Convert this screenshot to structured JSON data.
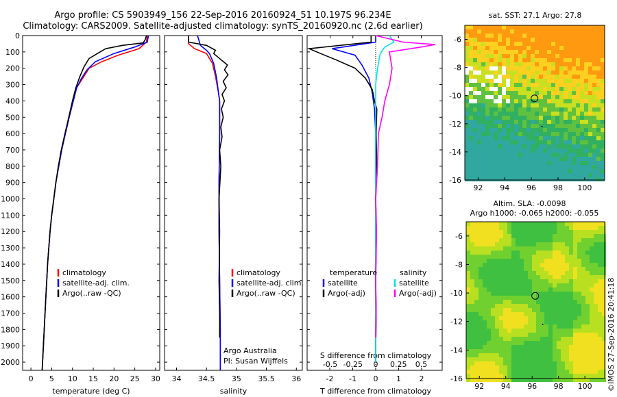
{
  "header": {
    "line1": "Argo profile: CS 5903949_156 22-Sep-2016 20160924_51 10.197S 96.234E",
    "line2": "Climatology: CARS2009. Satellite-adjusted climatology: synTS_20160920.nc (2.6d earlier)"
  },
  "colors": {
    "climatology": "#ff0000",
    "satellite": "#0000ff",
    "argo": "#000000",
    "sat_sal": "#00e5e5",
    "argo_sal": "#ff00ff"
  },
  "depth_axis": {
    "ticks": [
      0,
      100,
      200,
      300,
      400,
      500,
      600,
      700,
      800,
      900,
      1000,
      1100,
      1200,
      1300,
      1400,
      1500,
      1600,
      1700,
      1800,
      1900,
      2000
    ],
    "range": [
      0,
      2050
    ]
  },
  "temp_panel": {
    "xlabel": "temperature (deg C)",
    "xticks": [
      0,
      5,
      10,
      15,
      20,
      25,
      30
    ],
    "xlim": [
      -2,
      31
    ],
    "legend": [
      "climatology",
      "satellite-adj. clim.",
      "Argo(..raw -QC)"
    ]
  },
  "sal_panel": {
    "xlabel": "salinity",
    "xticks": [
      "34",
      "34.5",
      "35",
      "35.5",
      "36"
    ],
    "xlim": [
      33.8,
      36.1
    ],
    "legend": [
      "climatology",
      "satellite-adj. clim.",
      "Argo(..raw -QC)"
    ],
    "note1": "Argo Australia",
    "note2": "PI: Susan Wijffels"
  },
  "diff_panel": {
    "top_label": "S difference from climatology",
    "bottom_label": "T difference from climatology",
    "s_ticks": [
      "-0.5",
      "-0.25",
      "0",
      "0.25",
      "0.5"
    ],
    "t_ticks": [
      "-2",
      "-1",
      "0",
      "1",
      "2"
    ],
    "legend_t_title": "temperature",
    "legend_s_title": "salinity",
    "legend_t": [
      "satellite",
      "Argo(-adj)"
    ],
    "legend_s": [
      "satellite",
      "Argo(-adj)"
    ]
  },
  "map_top": {
    "title": "sat. SST: 27.1  Argo: 27.8"
  },
  "map_bottom": {
    "title1": "Altim. SLA: -0.0098",
    "title2": "Argo h1000: -0.065 h2000: -0.055"
  },
  "map_axes": {
    "yticks": [
      "-6",
      "-8",
      "-10",
      "-12",
      "-14",
      "-16"
    ],
    "xticks": [
      "92",
      "94",
      "96",
      "98",
      "100"
    ]
  },
  "credit": "©IMOS 27-Sep-2016 20:41:18",
  "chart_data": [
    {
      "type": "line",
      "xlabel": "temperature (deg C)",
      "ylabel": "",
      "ylim": [
        2050,
        0
      ],
      "xlim": [
        -2,
        31
      ],
      "series": [
        {
          "name": "climatology",
          "points": [
            [
              28,
              0
            ],
            [
              27.8,
              40
            ],
            [
              26,
              80
            ],
            [
              21,
              120
            ],
            [
              17,
              160
            ],
            [
              14,
              200
            ],
            [
              12.5,
              260
            ],
            [
              11,
              320
            ],
            [
              10.2,
              400
            ],
            [
              9.2,
              500
            ],
            [
              8.3,
              600
            ],
            [
              7.4,
              700
            ],
            [
              6.7,
              800
            ],
            [
              6,
              900
            ],
            [
              5.5,
              1000
            ],
            [
              5,
              1100
            ],
            [
              4.6,
              1200
            ],
            [
              4.3,
              1300
            ],
            [
              4,
              1400
            ],
            [
              3.8,
              1500
            ],
            [
              3.6,
              1600
            ],
            [
              3.4,
              1700
            ],
            [
              3.2,
              1800
            ],
            [
              3,
              1900
            ],
            [
              2.8,
              2000
            ],
            [
              2.7,
              2050
            ]
          ]
        },
        {
          "name": "satellite-adj. clim.",
          "points": [
            [
              28.3,
              0
            ],
            [
              28,
              40
            ],
            [
              25,
              70
            ],
            [
              20,
              110
            ],
            [
              15.5,
              160
            ],
            [
              13.5,
              210
            ],
            [
              12.2,
              260
            ],
            [
              11,
              320
            ],
            [
              10.2,
              400
            ],
            [
              9.2,
              500
            ],
            [
              8.3,
              600
            ],
            [
              7.4,
              700
            ],
            [
              6.7,
              800
            ],
            [
              6,
              900
            ],
            [
              5.5,
              1000
            ],
            [
              5,
              1100
            ],
            [
              4.6,
              1200
            ],
            [
              4.3,
              1300
            ],
            [
              4,
              1400
            ],
            [
              3.8,
              1500
            ],
            [
              3.6,
              1600
            ],
            [
              3.4,
              1700
            ],
            [
              3.2,
              1800
            ],
            [
              3,
              1900
            ],
            [
              2.8,
              2000
            ],
            [
              2.7,
              2050
            ]
          ]
        },
        {
          "name": "Argo(..raw -QC)",
          "points": [
            [
              27.8,
              0
            ],
            [
              27.5,
              25
            ],
            [
              27,
              45
            ],
            [
              22,
              60
            ],
            [
              18,
              80
            ],
            [
              16,
              110
            ],
            [
              14,
              140
            ],
            [
              12.8,
              190
            ],
            [
              11.8,
              250
            ],
            [
              10.8,
              320
            ],
            [
              10,
              400
            ],
            [
              9.1,
              500
            ],
            [
              8.2,
              600
            ],
            [
              7.3,
              700
            ],
            [
              6.6,
              800
            ],
            [
              6,
              900
            ],
            [
              5.5,
              1000
            ],
            [
              5,
              1100
            ],
            [
              4.6,
              1200
            ],
            [
              4.3,
              1300
            ],
            [
              4,
              1400
            ],
            [
              3.8,
              1500
            ],
            [
              3.6,
              1600
            ],
            [
              3.4,
              1700
            ],
            [
              3.2,
              1800
            ],
            [
              3,
              1900
            ],
            [
              2.8,
              2000
            ],
            [
              2.7,
              2050
            ]
          ]
        }
      ]
    },
    {
      "type": "line",
      "xlabel": "salinity",
      "ylabel": "",
      "ylim": [
        2050,
        0
      ],
      "xlim": [
        33.8,
        36.1
      ],
      "series": [
        {
          "name": "climatology",
          "points": [
            [
              34.2,
              0
            ],
            [
              34.2,
              50
            ],
            [
              34.3,
              80
            ],
            [
              34.5,
              110
            ],
            [
              34.6,
              170
            ],
            [
              34.65,
              250
            ],
            [
              34.7,
              350
            ],
            [
              34.72,
              400
            ],
            [
              34.72,
              600
            ],
            [
              34.71,
              900
            ],
            [
              34.71,
              1200
            ],
            [
              34.72,
              1500
            ],
            [
              34.73,
              1800
            ],
            [
              34.73,
              2050
            ]
          ]
        },
        {
          "name": "satellite-adj. clim.",
          "points": [
            [
              34.35,
              0
            ],
            [
              34.4,
              60
            ],
            [
              34.5,
              90
            ],
            [
              34.55,
              110
            ],
            [
              34.62,
              170
            ],
            [
              34.67,
              260
            ],
            [
              34.7,
              350
            ],
            [
              34.72,
              400
            ],
            [
              34.72,
              600
            ],
            [
              34.71,
              900
            ],
            [
              34.71,
              1200
            ],
            [
              34.72,
              1500
            ],
            [
              34.73,
              1800
            ],
            [
              34.73,
              2050
            ]
          ]
        },
        {
          "name": "Argo(..raw -QC)",
          "points": [
            [
              34.2,
              0
            ],
            [
              34.2,
              40
            ],
            [
              34.5,
              60
            ],
            [
              34.65,
              90
            ],
            [
              34.62,
              110
            ],
            [
              34.75,
              150
            ],
            [
              34.85,
              180
            ],
            [
              34.8,
              210
            ],
            [
              34.86,
              240
            ],
            [
              34.78,
              280
            ],
            [
              34.83,
              320
            ],
            [
              34.76,
              360
            ],
            [
              34.8,
              400
            ],
            [
              34.75,
              450
            ],
            [
              34.78,
              500
            ],
            [
              34.74,
              560
            ],
            [
              34.76,
              620
            ],
            [
              34.72,
              700
            ],
            [
              34.74,
              800
            ],
            [
              34.71,
              1000
            ],
            [
              34.72,
              1200
            ],
            [
              34.71,
              1500
            ],
            [
              34.72,
              1700
            ],
            [
              34.72,
              1850
            ]
          ]
        }
      ]
    },
    {
      "type": "line",
      "xlabel": "T difference from climatology",
      "ylabel": "",
      "ylim": [
        2050,
        0
      ],
      "series": [
        {
          "name": "temperature satellite",
          "points": [
            [
              0,
              0
            ],
            [
              0,
              40
            ],
            [
              -1.9,
              80
            ],
            [
              -0.9,
              120
            ],
            [
              -0.6,
              180
            ],
            [
              -0.3,
              260
            ],
            [
              -0.15,
              350
            ],
            [
              -0.05,
              450
            ],
            [
              0,
              600
            ],
            [
              0,
              2000
            ]
          ]
        },
        {
          "name": "temperature Argo(-adj)",
          "points": [
            [
              -0.2,
              0
            ],
            [
              -0.2,
              40
            ],
            [
              -2.9,
              80
            ],
            [
              -2.4,
              110
            ],
            [
              -1.7,
              150
            ],
            [
              -0.9,
              200
            ],
            [
              -0.45,
              260
            ],
            [
              -0.15,
              330
            ],
            [
              -0.05,
              400
            ],
            [
              0.05,
              450
            ],
            [
              0.02,
              600
            ],
            [
              0.05,
              800
            ],
            [
              0,
              1000
            ],
            [
              0.03,
              1200
            ],
            [
              0,
              1500
            ],
            [
              0.02,
              1700
            ],
            [
              0.01,
              1850
            ]
          ]
        }
      ]
    },
    {
      "type": "line",
      "xlabel": "S difference from climatology",
      "ylabel": "",
      "ylim": [
        2050,
        0
      ],
      "series": [
        {
          "name": "salinity satellite",
          "points": [
            [
              0.15,
              0
            ],
            [
              0.2,
              40
            ],
            [
              0.1,
              70
            ],
            [
              0.05,
              110
            ],
            [
              0.02,
              200
            ],
            [
              0,
              300
            ],
            [
              0,
              2000
            ]
          ]
        },
        {
          "name": "salinity Argo(-adj)",
          "points": [
            [
              0,
              0
            ],
            [
              0.3,
              40
            ],
            [
              0.65,
              55
            ],
            [
              0.5,
              70
            ],
            [
              0.15,
              100
            ],
            [
              0.18,
              200
            ],
            [
              0.15,
              300
            ],
            [
              0.1,
              400
            ],
            [
              0.07,
              500
            ],
            [
              0.03,
              600
            ],
            [
              0.02,
              800
            ],
            [
              0,
              1000
            ],
            [
              0.01,
              1200
            ],
            [
              0,
              1500
            ],
            [
              0.005,
              1700
            ],
            [
              0,
              1850
            ]
          ]
        }
      ]
    }
  ]
}
